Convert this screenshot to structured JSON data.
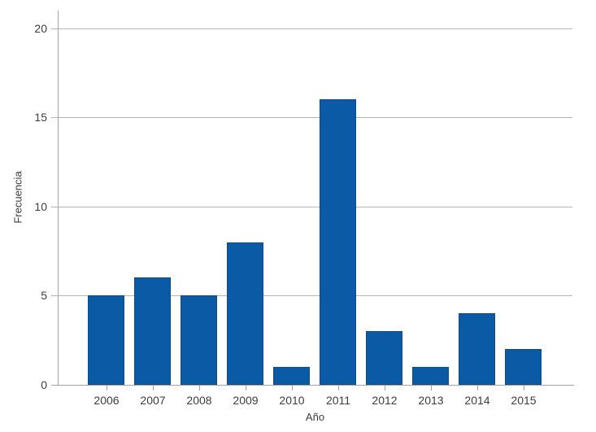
{
  "chart_data": {
    "type": "bar",
    "title": "",
    "xlabel": "Año",
    "ylabel": "Frecuencia",
    "categories": [
      "2006",
      "2007",
      "2008",
      "2009",
      "2010",
      "2011",
      "2012",
      "2013",
      "2014",
      "2015"
    ],
    "values": [
      5,
      6,
      5,
      8,
      1,
      16,
      3,
      1,
      4,
      2
    ],
    "ylim": [
      0,
      20
    ],
    "yticks": [
      0,
      5,
      10,
      15,
      20
    ],
    "ytick_labels": [
      "0",
      "5",
      "10",
      "15",
      "20"
    ],
    "grid": true,
    "legend": "none",
    "colors": {
      "bar_fill": "#0b5aa6",
      "bar_border": "#0f4c85",
      "gridline": "#b5b5b5",
      "axis_line": "#a3a3a3",
      "text": "#3d3d3d",
      "background": "#ffffff"
    }
  }
}
